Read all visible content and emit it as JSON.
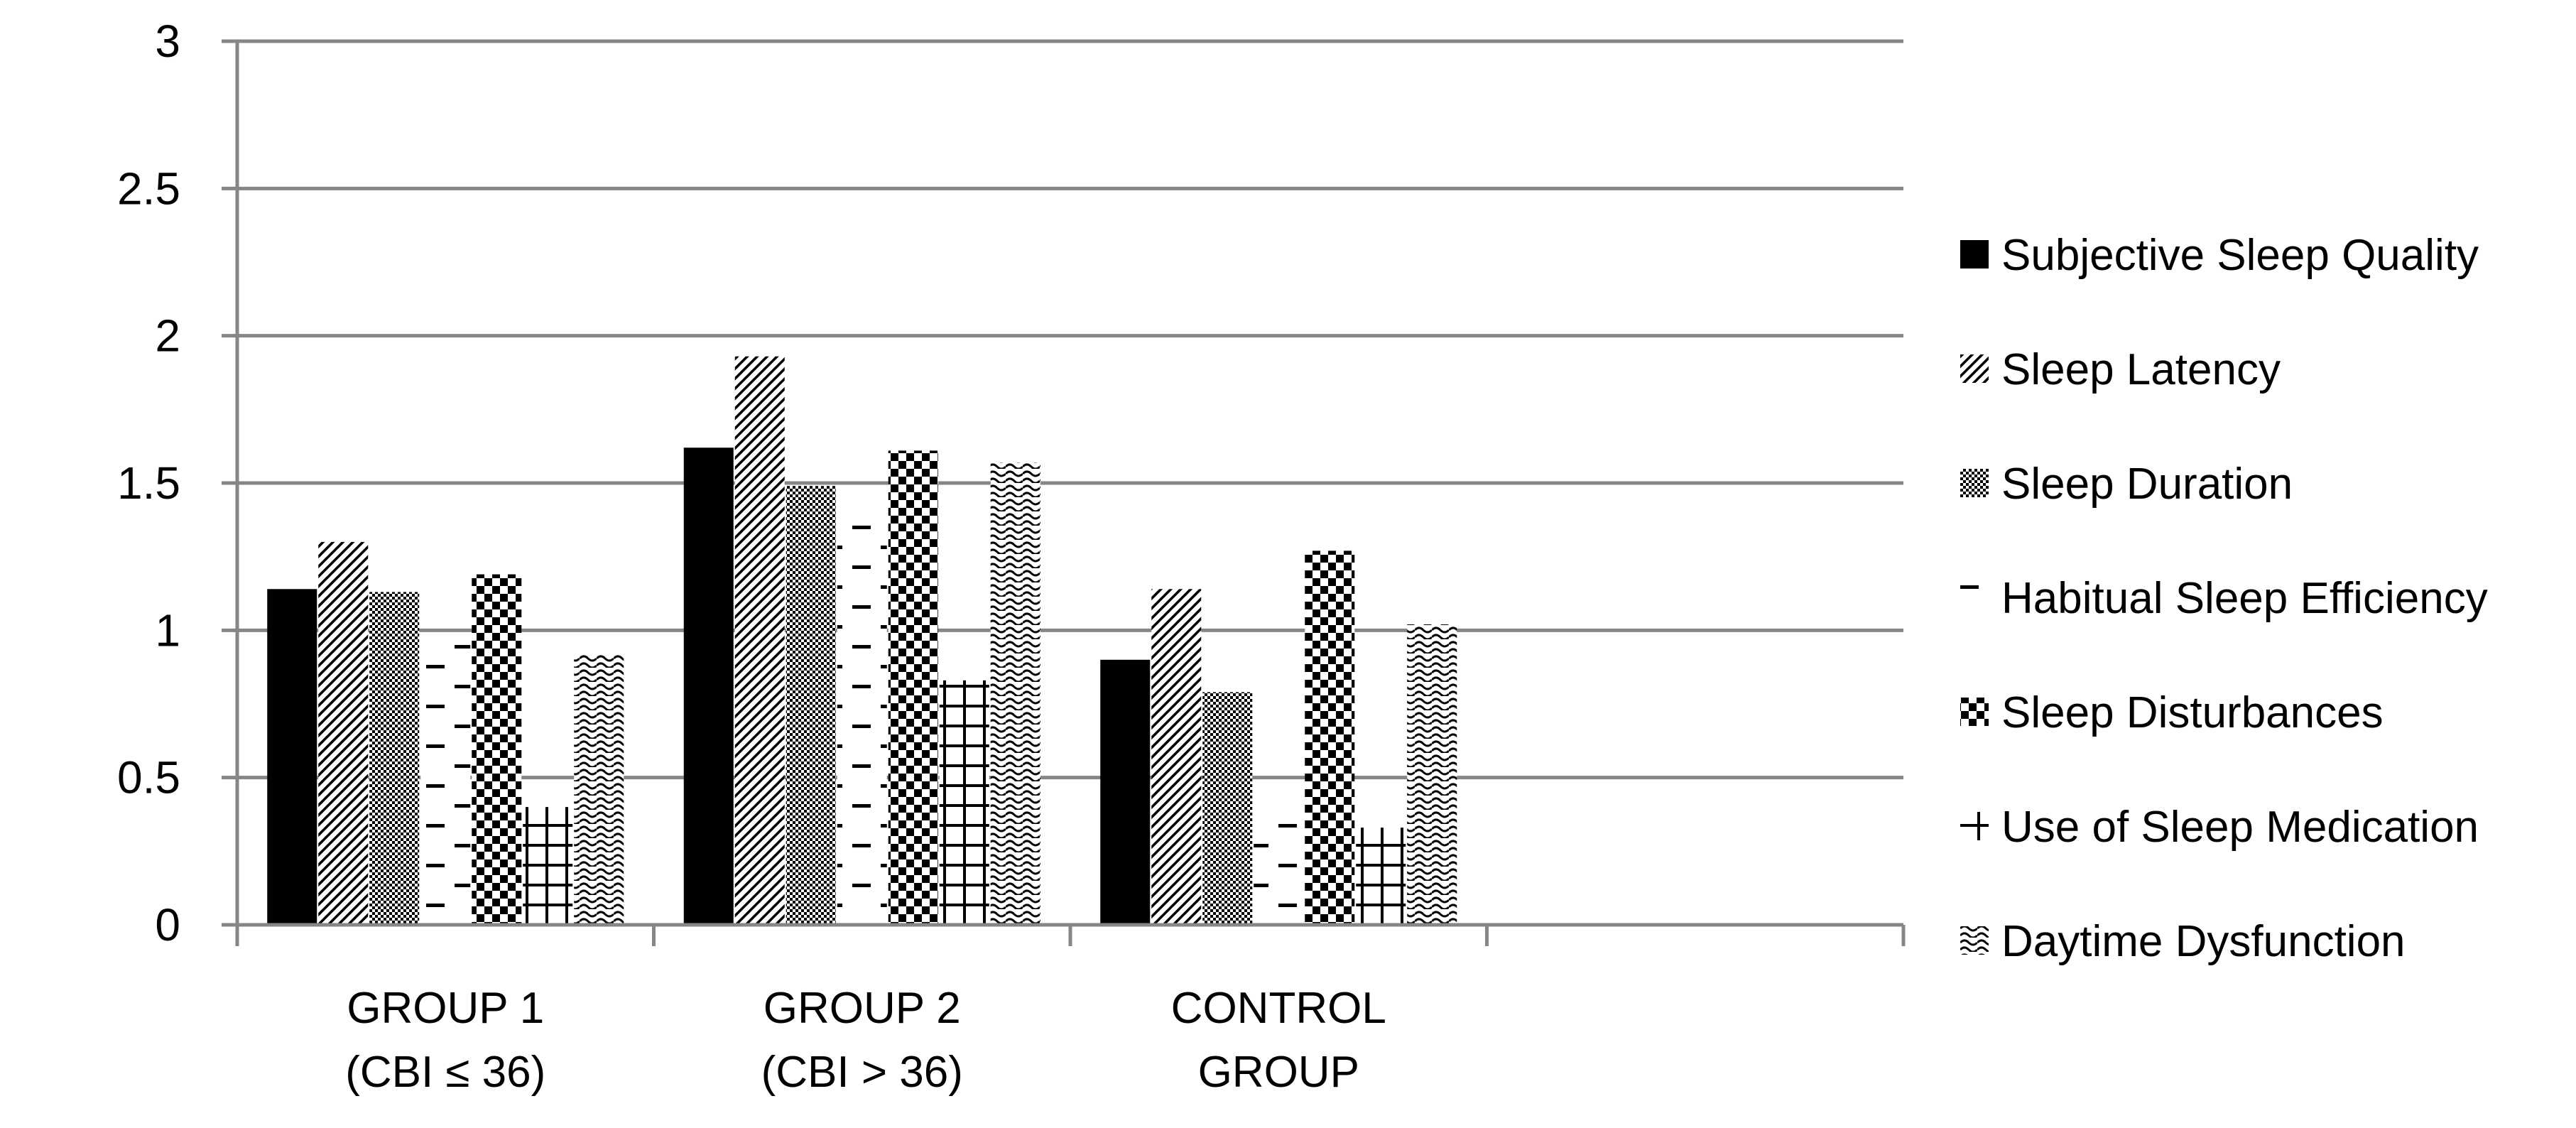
{
  "chart_data": {
    "type": "bar",
    "title": "",
    "xlabel": "",
    "ylabel": "",
    "ylim": [
      0,
      3
    ],
    "yticks": [
      "0",
      "0.5",
      "1",
      "1.5",
      "2",
      "2.5",
      "3"
    ],
    "grid": true,
    "legend_position": "right",
    "categories": [
      [
        "GROUP 1",
        "(CBI ≤ 36)"
      ],
      [
        "GROUP 2",
        "(CBI > 36)"
      ],
      [
        "CONTROL",
        "GROUP"
      ],
      [
        "",
        ""
      ]
    ],
    "series": [
      {
        "name": "Subjective Sleep Quality",
        "pattern": "solid",
        "values": [
          1.14,
          1.62,
          0.9,
          null
        ]
      },
      {
        "name": "Sleep Latency",
        "pattern": "diagonal-lines",
        "values": [
          1.3,
          1.93,
          1.14,
          null
        ]
      },
      {
        "name": "Sleep Duration",
        "pattern": "fine-checker",
        "values": [
          1.13,
          1.49,
          0.79,
          null
        ]
      },
      {
        "name": "Habitual Sleep Efficiency",
        "pattern": "dashes",
        "values": [
          0.97,
          1.4,
          0.36,
          null
        ]
      },
      {
        "name": "Sleep Disturbances",
        "pattern": "large-checker",
        "values": [
          1.19,
          1.61,
          1.27,
          null
        ]
      },
      {
        "name": "Use of Sleep Medication",
        "pattern": "grid",
        "values": [
          0.4,
          0.83,
          0.33,
          null
        ]
      },
      {
        "name": "Daytime Dysfunction",
        "pattern": "waves",
        "values": [
          0.92,
          1.57,
          1.02,
          null
        ]
      }
    ],
    "colors": {
      "axis": "#868686",
      "gridline": "#868686",
      "ink": "#000000"
    }
  }
}
